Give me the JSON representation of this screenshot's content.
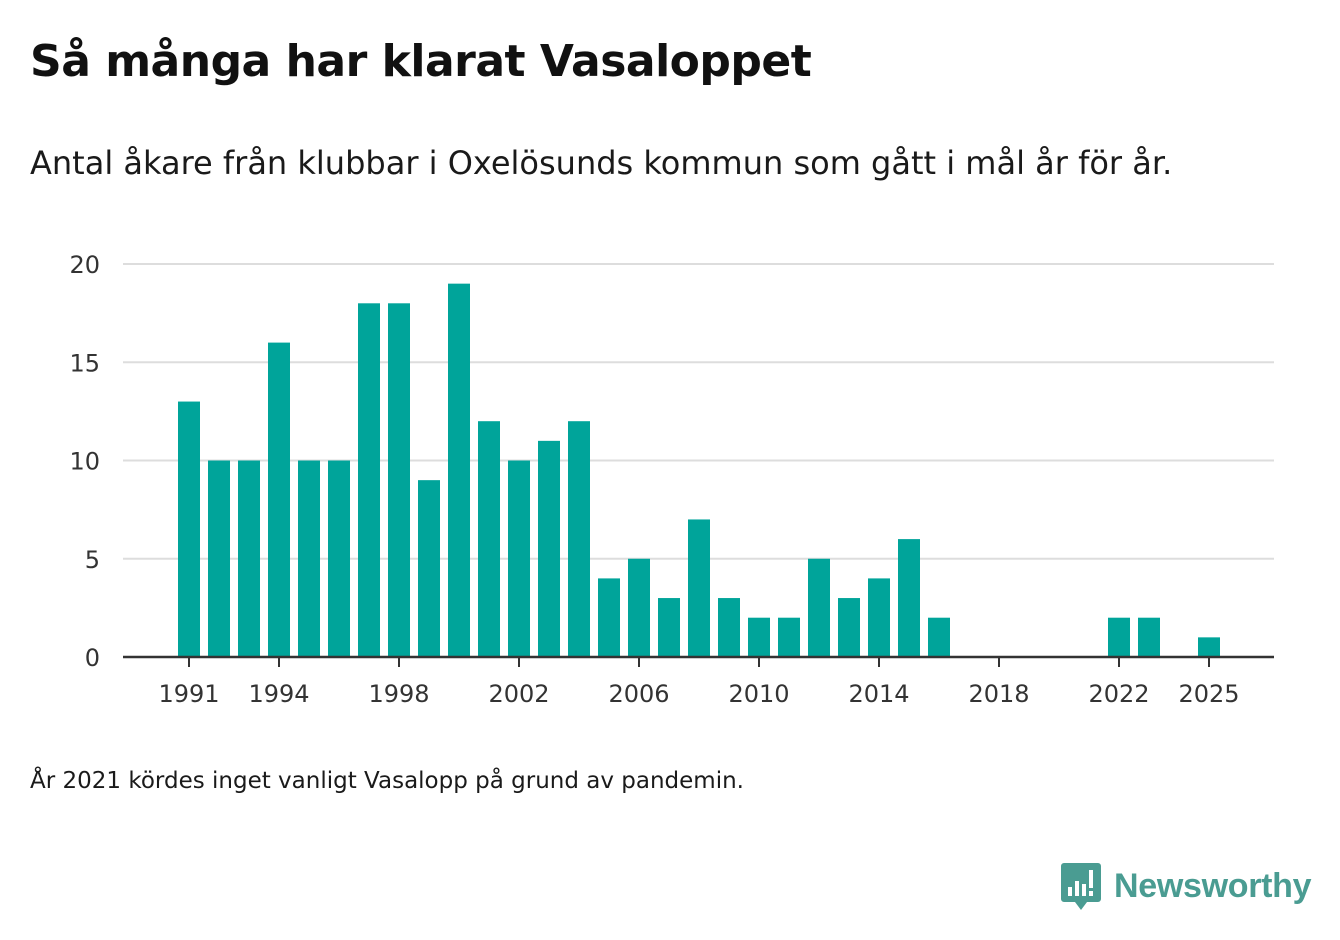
{
  "title": "Så många har klarat Vasaloppet",
  "subtitle": "Antal åkare från klubbar i Oxelösunds kommun som gått i mål år för år.",
  "footnote": "År 2021 kördes inget vanligt Vasalopp på grund av pandemin.",
  "logo": {
    "text": "Newsworthy",
    "icon": "newsworthy-logo-icon",
    "color": "#4a9c92"
  },
  "colors": {
    "bar": "#00a49a",
    "grid": "#dddddd",
    "axis": "#333333"
  },
  "chart_data": {
    "type": "bar",
    "title": "Så många har klarat Vasaloppet",
    "xlabel": "",
    "ylabel": "",
    "ylim": [
      0,
      20
    ],
    "yticks": [
      0,
      5,
      10,
      15,
      20
    ],
    "xticks": [
      1991,
      1994,
      1998,
      2002,
      2006,
      2010,
      2014,
      2018,
      2022,
      2025
    ],
    "xlim": [
      1991,
      2025
    ],
    "grid": true,
    "categories": [
      1991,
      1992,
      1993,
      1994,
      1995,
      1996,
      1997,
      1998,
      1999,
      2000,
      2001,
      2002,
      2003,
      2004,
      2005,
      2006,
      2007,
      2008,
      2009,
      2010,
      2011,
      2012,
      2013,
      2014,
      2015,
      2016,
      2017,
      2018,
      2019,
      2020,
      2021,
      2022,
      2023,
      2024,
      2025
    ],
    "values": [
      13,
      10,
      10,
      16,
      10,
      10,
      18,
      18,
      9,
      19,
      12,
      10,
      11,
      12,
      4,
      5,
      3,
      7,
      3,
      2,
      2,
      5,
      3,
      4,
      6,
      2,
      0,
      0,
      0,
      0,
      null,
      2,
      2,
      0,
      1
    ]
  }
}
